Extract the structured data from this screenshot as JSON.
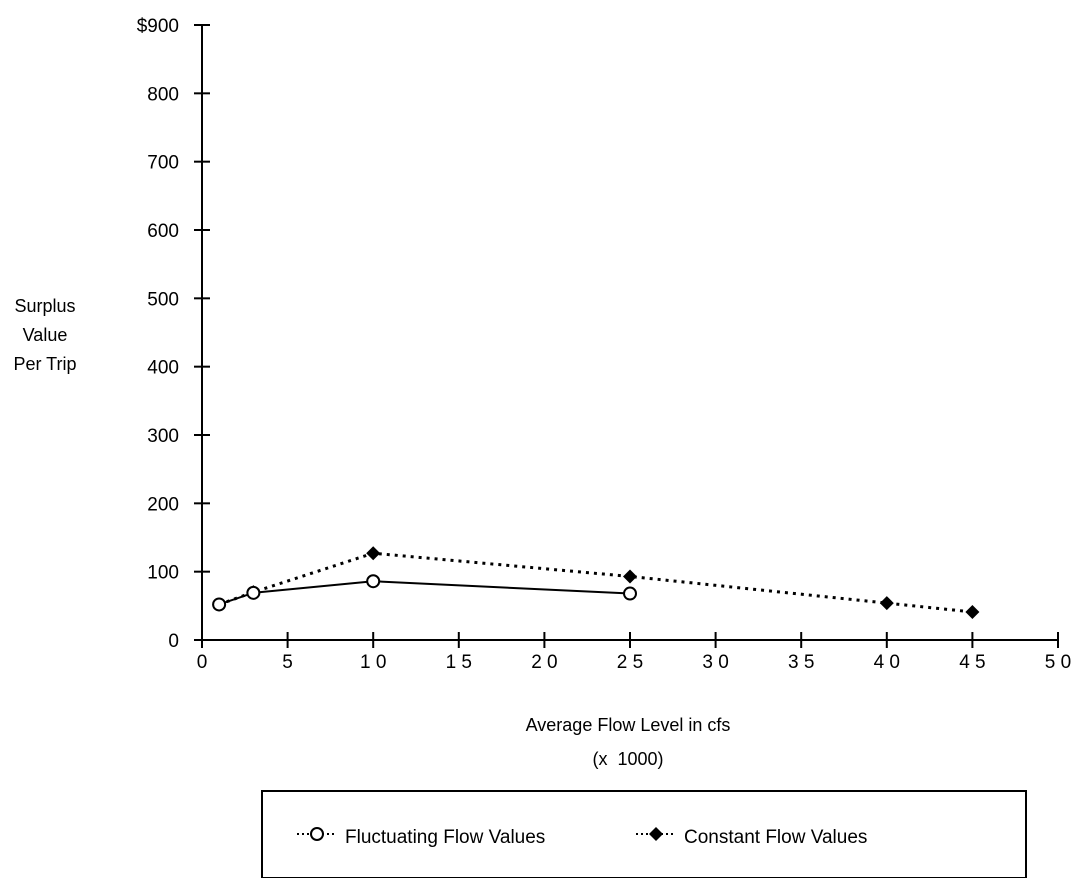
{
  "chart_data": {
    "type": "line",
    "title": "",
    "xlabel": "Average Flow Level in cfs",
    "xlabel_sub": "(x  1000)",
    "ylabel_lines": [
      "Surplus",
      "Value",
      "Per Trip"
    ],
    "xlim": [
      0,
      50
    ],
    "ylim": [
      0,
      900
    ],
    "x_ticks": [
      0,
      5,
      10,
      15,
      20,
      25,
      30,
      35,
      40,
      45,
      50
    ],
    "x_tick_labels": [
      "0",
      "5",
      "1 0",
      "1 5",
      "2 0",
      "2 5",
      "3 0",
      "3 5",
      "4 0",
      "4 5",
      "5 0"
    ],
    "y_ticks": [
      0,
      100,
      200,
      300,
      400,
      500,
      600,
      700,
      800,
      900
    ],
    "y_tick_labels": [
      "0",
      "100",
      "200",
      "300",
      "400",
      "500",
      "600",
      "700",
      "800",
      "$900"
    ],
    "grid": false,
    "legend_position": "bottom",
    "series": [
      {
        "name": "Fluctuating Flow Values",
        "marker": "open-circle",
        "line_style": "solid",
        "x": [
          1,
          3,
          10,
          25
        ],
        "y": [
          52,
          69,
          86,
          68
        ]
      },
      {
        "name": "Constant Flow Values",
        "marker": "filled-diamond",
        "line_style": "dotted",
        "x": [
          1,
          3,
          10,
          25,
          40,
          45
        ],
        "y": [
          52,
          70,
          127,
          93,
          54,
          41
        ]
      }
    ]
  }
}
